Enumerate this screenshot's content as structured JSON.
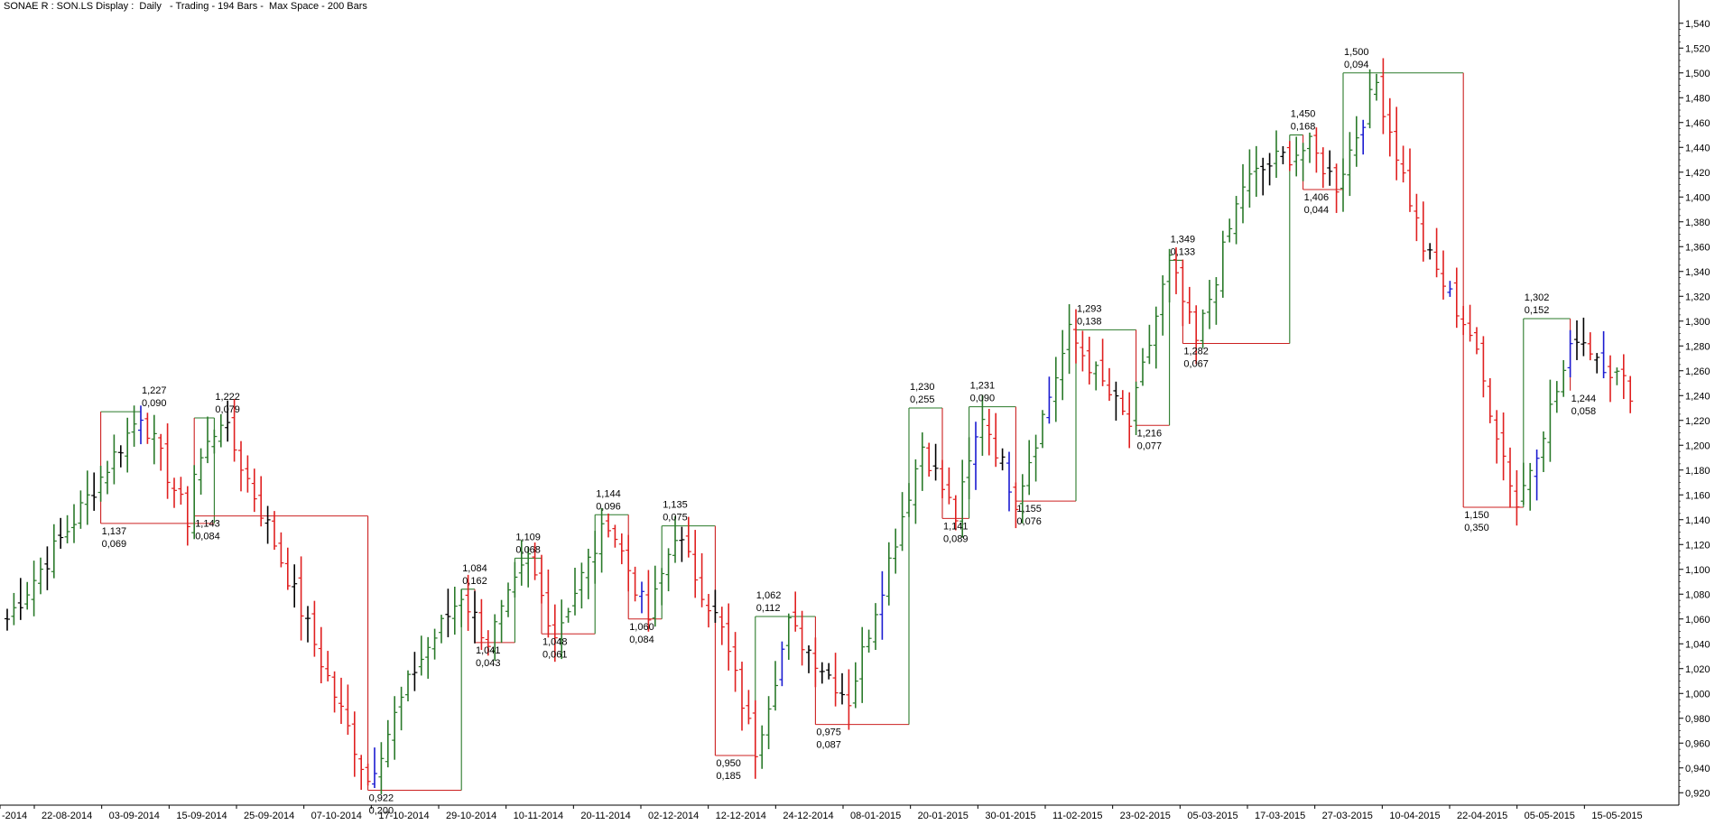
{
  "title": "SONAE R : SON.LS Display :  Daily   - Trading - 194 Bars -  Max Space - 200 Bars",
  "colors": {
    "up": "#2a7a2a",
    "down": "#e02020",
    "neutral": "#000000",
    "blue": "#1a1ad0",
    "swing_up": "#2a7a2a",
    "swing_down": "#cc2020",
    "axis": "#000000"
  },
  "chart_data": {
    "type": "bar",
    "subtype": "ohlc-swing",
    "ylim": [
      0.91,
      1.55
    ],
    "y_ticks": [
      "0,920",
      "0,940",
      "0,960",
      "0,980",
      "1,000",
      "1,020",
      "1,040",
      "1,060",
      "1,080",
      "1,100",
      "1,120",
      "1,140",
      "1,160",
      "1,180",
      "1,200",
      "1,220",
      "1,240",
      "1,260",
      "1,280",
      "1,300",
      "1,320",
      "1,340",
      "1,360",
      "1,380",
      "1,400",
      "1,420",
      "1,440",
      "1,460",
      "1,480",
      "1,500",
      "1,520",
      "1,540"
    ],
    "x_labels": [
      "-2014",
      "22-08-2014",
      "03-09-2014",
      "15-09-2014",
      "25-09-2014",
      "07-10-2014",
      "17-10-2014",
      "29-10-2014",
      "10-11-2014",
      "20-11-2014",
      "02-12-2014",
      "12-12-2014",
      "24-12-2014",
      "08-01-2015",
      "20-01-2015",
      "30-01-2015",
      "11-02-2015",
      "23-02-2015",
      "05-03-2015",
      "17-03-2015",
      "27-03-2015",
      "10-04-2015",
      "22-04-2015",
      "05-05-2015",
      "15-05-2015"
    ],
    "anchors": [
      [
        0,
        1.06
      ],
      [
        10,
        1.14
      ],
      [
        17,
        1.2
      ],
      [
        20,
        1.226
      ],
      [
        27,
        1.14
      ],
      [
        28,
        1.178
      ],
      [
        32,
        1.222
      ],
      [
        39,
        1.135
      ],
      [
        46,
        1.04
      ],
      [
        54,
        0.93
      ],
      [
        61,
        1.02
      ],
      [
        68,
        1.08
      ],
      [
        72,
        1.042
      ],
      [
        78,
        1.108
      ],
      [
        82,
        1.048
      ],
      [
        90,
        1.14
      ],
      [
        96,
        1.06
      ],
      [
        100,
        1.13
      ],
      [
        107,
        1.05
      ],
      [
        112,
        0.955
      ],
      [
        117,
        1.055
      ],
      [
        126,
        0.995
      ],
      [
        137,
        1.2
      ],
      [
        142,
        1.142
      ],
      [
        146,
        1.225
      ],
      [
        151,
        1.156
      ],
      [
        159,
        1.29
      ],
      [
        168,
        1.216
      ],
      [
        174,
        1.348
      ],
      [
        178,
        1.282
      ],
      [
        185,
        1.41
      ],
      [
        190,
        1.43
      ],
      [
        195,
        1.44
      ],
      [
        199,
        1.41
      ],
      [
        205,
        1.492
      ],
      [
        212,
        1.36
      ],
      [
        219,
        1.29
      ],
      [
        226,
        1.152
      ],
      [
        235,
        1.29
      ],
      [
        243,
        1.244
      ]
    ],
    "swing_points": [
      {
        "price": "1,227",
        "vol": "0,090",
        "type": "high",
        "bar": 20
      },
      {
        "price": "1,137",
        "vol": "0,069",
        "type": "low",
        "bar": 14
      },
      {
        "price": "1,222",
        "vol": "0,079",
        "type": "high",
        "bar": 31
      },
      {
        "price": "1,143",
        "vol": "0,084",
        "type": "low",
        "bar": 28
      },
      {
        "price": "0,922",
        "vol": "0,200",
        "type": "low",
        "bar": 54
      },
      {
        "price": "1,084",
        "vol": "0,162",
        "type": "high",
        "bar": 68
      },
      {
        "price": "1,041",
        "vol": "0,043",
        "type": "low",
        "bar": 70
      },
      {
        "price": "1,109",
        "vol": "0,068",
        "type": "high",
        "bar": 76
      },
      {
        "price": "1,048",
        "vol": "0,061",
        "type": "low",
        "bar": 80
      },
      {
        "price": "1,144",
        "vol": "0,096",
        "type": "high",
        "bar": 88
      },
      {
        "price": "1,060",
        "vol": "0,084",
        "type": "low",
        "bar": 93
      },
      {
        "price": "1,135",
        "vol": "0,075",
        "type": "high",
        "bar": 98
      },
      {
        "price": "0,950",
        "vol": "0,185",
        "type": "low",
        "bar": 106
      },
      {
        "price": "1,062",
        "vol": "0,112",
        "type": "high",
        "bar": 112
      },
      {
        "price": "0,975",
        "vol": "0,087",
        "type": "low",
        "bar": 121
      },
      {
        "price": "1,230",
        "vol": "0,255",
        "type": "high",
        "bar": 135
      },
      {
        "price": "1,141",
        "vol": "0,089",
        "type": "low",
        "bar": 140
      },
      {
        "price": "1,231",
        "vol": "0,090",
        "type": "high",
        "bar": 144
      },
      {
        "price": "1,155",
        "vol": "0,076",
        "type": "low",
        "bar": 151
      },
      {
        "price": "1,293",
        "vol": "0,138",
        "type": "high",
        "bar": 160
      },
      {
        "price": "1,216",
        "vol": "0,077",
        "type": "low",
        "bar": 169
      },
      {
        "price": "1,349",
        "vol": "0,133",
        "type": "high",
        "bar": 174
      },
      {
        "price": "1,282",
        "vol": "0,067",
        "type": "low",
        "bar": 176
      },
      {
        "price": "1,450",
        "vol": "0,168",
        "type": "high",
        "bar": 192
      },
      {
        "price": "1,406",
        "vol": "0,044",
        "type": "low",
        "bar": 194
      },
      {
        "price": "1,500",
        "vol": "0,094",
        "type": "high",
        "bar": 200
      },
      {
        "price": "1,150",
        "vol": "0,350",
        "type": "low",
        "bar": 218
      },
      {
        "price": "1,302",
        "vol": "0,152",
        "type": "high",
        "bar": 227
      },
      {
        "price": "1,244",
        "vol": "0,058",
        "type": "low",
        "bar": 234
      }
    ]
  }
}
